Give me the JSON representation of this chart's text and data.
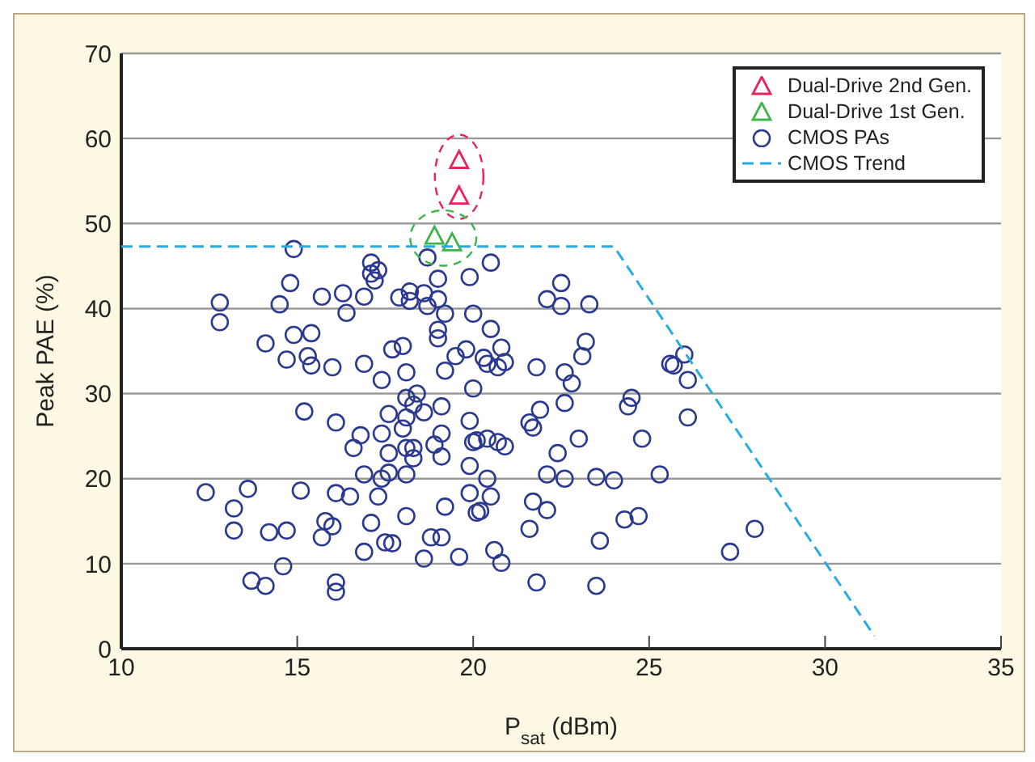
{
  "chart_data": {
    "type": "scatter",
    "xlabel": "P$_{sat}$ (dBm)",
    "ylabel": "Peak PAE (%)",
    "xlim": [
      10,
      35
    ],
    "xticks": [
      10,
      15,
      20,
      25,
      30,
      35
    ],
    "ylim": [
      0,
      70
    ],
    "yticks": [
      0,
      10,
      20,
      30,
      40,
      50,
      60,
      70
    ],
    "grid": "y",
    "legend": "top right",
    "series": [
      {
        "name": "Dual-Drive 2nd Gen.",
        "marker": "triangle",
        "color": "#e8245a",
        "x": [
          19.6,
          19.6
        ],
        "values": [
          57.4,
          53.2
        ]
      },
      {
        "name": "Dual-Drive 1st Gen.",
        "marker": "triangle",
        "color": "#3cb54a",
        "x": [
          18.9,
          19.4
        ],
        "values": [
          48.5,
          47.7
        ]
      },
      {
        "name": "CMOS PAs",
        "marker": "circle",
        "color": "#2b3990",
        "x": [
          14.9,
          17.1,
          17.3,
          17.1,
          17.2,
          18.7,
          19.0,
          19.9,
          14.8,
          12.8,
          12.8,
          14.5,
          15.7,
          16.3,
          16.9,
          16.4,
          17.9,
          18.2,
          18.2,
          18.6,
          18.7,
          19.0,
          19.2,
          20.0,
          19.0,
          19.0,
          14.1,
          14.9,
          15.4,
          17.7,
          18.0,
          19.5,
          19.8,
          14.7,
          15.3,
          15.4,
          16.0,
          16.9,
          17.4,
          18.1,
          19.2,
          20.0,
          15.2,
          16.1,
          18.1,
          18.4,
          18.3,
          18.6,
          19.1,
          17.6,
          18.1,
          18.0,
          16.8,
          17.4,
          19.1,
          19.9,
          16.6,
          17.6,
          18.1,
          18.3,
          18.3,
          18.9,
          19.1,
          19.9,
          20.0,
          16.9,
          17.6,
          17.4,
          18.1,
          12.4,
          13.6,
          15.1,
          16.1,
          16.5,
          17.3,
          13.2,
          19.9,
          19.2,
          20.1,
          13.2,
          14.2,
          14.7,
          15.8,
          16.0,
          15.7,
          17.1,
          18.1,
          17.5,
          17.7,
          18.8,
          19.1,
          16.9,
          18.6,
          19.6,
          14.6,
          13.7,
          14.1,
          16.1,
          16.1,
          20.5,
          22.1,
          22.5,
          22.5,
          23.3,
          20.5,
          20.3,
          20.4,
          20.8,
          20.9,
          20.7,
          21.8,
          22.6,
          22.8,
          23.1,
          23.2,
          25.6,
          26.0,
          26.1,
          21.9,
          22.6,
          21.6,
          21.7,
          24.5,
          24.4,
          26.1,
          20.4,
          20.1,
          24.8,
          23.0,
          20.7,
          20.9,
          22.4,
          20.4,
          22.1,
          22.6,
          23.5,
          24.0,
          25.3,
          20.5,
          20.2,
          21.7,
          22.1,
          24.3,
          24.7,
          21.6,
          23.6,
          20.6,
          20.8,
          21.8,
          23.5,
          28.0,
          27.3,
          25.7
        ],
        "values": [
          47.0,
          45.4,
          44.5,
          44.1,
          43.3,
          46.0,
          43.5,
          43.7,
          43.0,
          40.7,
          38.4,
          40.5,
          41.4,
          41.8,
          41.4,
          39.5,
          41.3,
          42.0,
          40.9,
          41.8,
          40.3,
          41.1,
          39.4,
          39.4,
          37.5,
          36.5,
          35.9,
          36.9,
          37.1,
          35.2,
          35.6,
          34.4,
          35.2,
          34.0,
          34.4,
          33.3,
          33.1,
          33.5,
          31.6,
          32.5,
          32.7,
          30.6,
          27.9,
          26.6,
          29.5,
          30.0,
          28.7,
          27.8,
          28.5,
          27.6,
          27.2,
          25.9,
          25.1,
          25.3,
          25.3,
          26.8,
          23.6,
          23.0,
          23.6,
          23.6,
          22.4,
          24.0,
          22.6,
          21.5,
          24.3,
          20.5,
          20.7,
          20.0,
          20.5,
          18.4,
          18.8,
          18.6,
          18.3,
          17.9,
          17.9,
          16.5,
          18.3,
          16.7,
          16.0,
          13.9,
          13.7,
          13.9,
          15.0,
          14.4,
          13.1,
          14.8,
          15.6,
          12.5,
          12.4,
          13.1,
          13.1,
          11.4,
          10.6,
          10.8,
          9.7,
          8.0,
          7.4,
          7.8,
          6.7,
          45.4,
          41.1,
          43.0,
          40.3,
          40.5,
          37.6,
          34.2,
          33.5,
          35.4,
          33.7,
          33.1,
          33.1,
          32.5,
          31.2,
          34.4,
          36.1,
          33.5,
          34.6,
          31.6,
          28.1,
          28.9,
          26.6,
          26.0,
          29.5,
          28.5,
          27.2,
          24.7,
          24.5,
          24.7,
          24.7,
          24.3,
          23.8,
          23.0,
          20.0,
          20.5,
          20.0,
          20.2,
          19.8,
          20.5,
          17.9,
          16.2,
          17.3,
          16.3,
          15.2,
          15.6,
          14.1,
          12.7,
          11.6,
          10.1,
          7.8,
          7.4,
          14.1,
          11.4,
          33.3
        ]
      },
      {
        "name": "CMOS Trend",
        "type": "line",
        "line_style": "dashed",
        "marker": "none",
        "color": "#29abe2",
        "x": [
          10,
          24,
          31.4
        ],
        "values": [
          47.3,
          47.3,
          1.5
        ]
      }
    ]
  }
}
